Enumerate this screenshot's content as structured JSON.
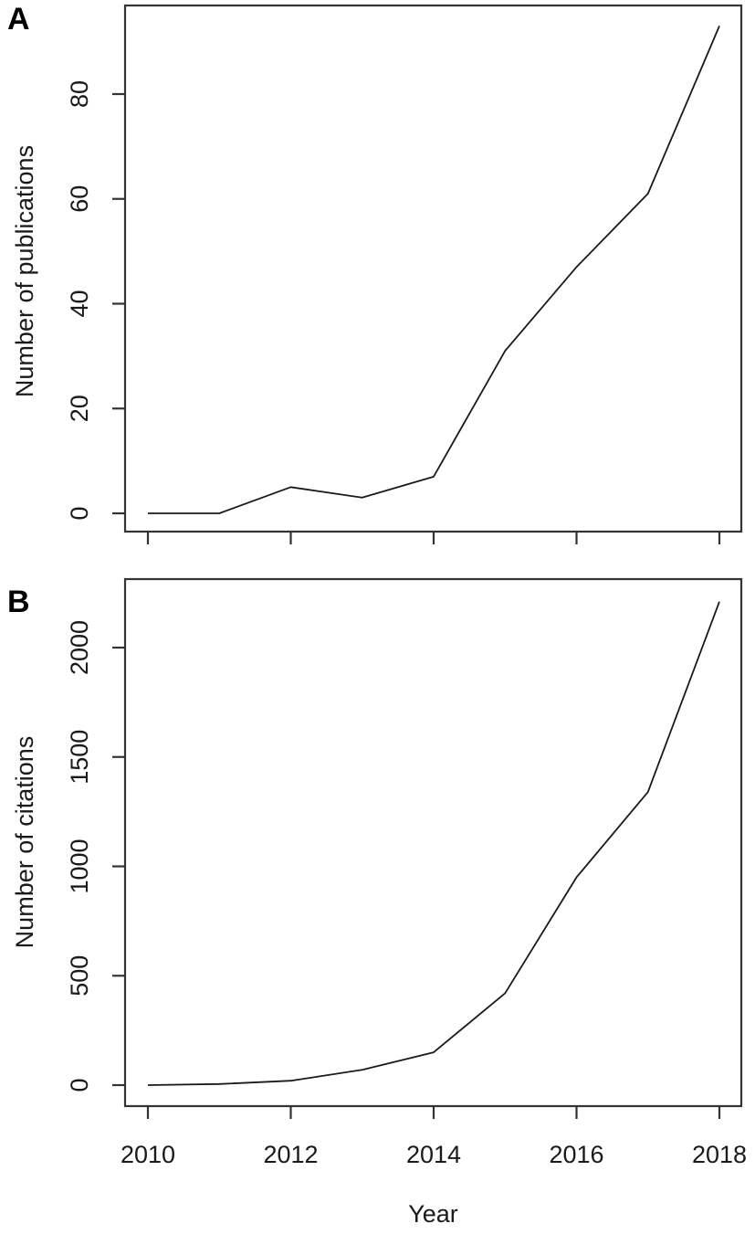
{
  "figure": {
    "background_color": "#ffffff",
    "line_color": "#1a1a1a",
    "frame_color": "#333333",
    "text_color": "#1a1a1a"
  },
  "chart_data": [
    {
      "type": "line",
      "panel_label": "A",
      "title": "",
      "xlabel": "",
      "ylabel": "Number of publications",
      "x": [
        2010,
        2011,
        2012,
        2013,
        2014,
        2015,
        2016,
        2017,
        2018
      ],
      "values": [
        0,
        0,
        5,
        3,
        7,
        31,
        47,
        61,
        93
      ],
      "xticks": [
        2010,
        2012,
        2014,
        2016,
        2018
      ],
      "yticks": [
        0,
        20,
        40,
        60,
        80
      ],
      "xlim": [
        2010,
        2018
      ],
      "ylim": [
        0,
        95
      ],
      "grid": false,
      "legend": "none",
      "show_x_tick_labels": false
    },
    {
      "type": "line",
      "panel_label": "B",
      "title": "",
      "xlabel": "Year",
      "ylabel": "Number of citations",
      "x": [
        2010,
        2011,
        2012,
        2013,
        2014,
        2015,
        2016,
        2017,
        2018
      ],
      "values": [
        0,
        5,
        20,
        70,
        150,
        420,
        950,
        1340,
        2210
      ],
      "xticks": [
        2010,
        2012,
        2014,
        2016,
        2018
      ],
      "yticks": [
        0,
        500,
        1000,
        1500,
        2000
      ],
      "xlim": [
        2010,
        2018
      ],
      "ylim": [
        0,
        2250
      ],
      "grid": false,
      "legend": "none",
      "show_x_tick_labels": true
    }
  ]
}
